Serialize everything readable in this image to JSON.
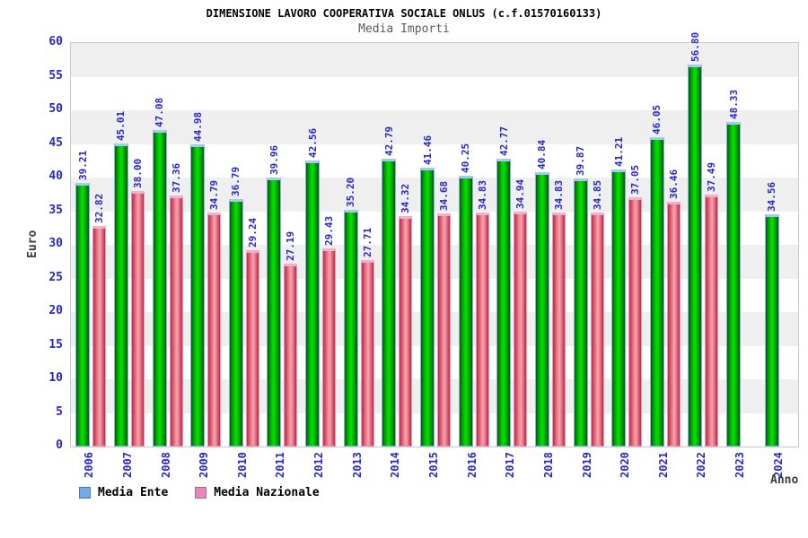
{
  "title": "DIMENSIONE LAVORO COOPERATIVA SOCIALE ONLUS (c.f.01570160133)",
  "subtitle": "Media Importi",
  "y_axis_label": "Euro",
  "x_axis_label": "Anno",
  "legend": [
    {
      "label": "Media Ente",
      "swatch_color": "#73aae8"
    },
    {
      "label": "Media Nazionale",
      "swatch_color": "#ea85b8"
    }
  ],
  "chart_data": {
    "type": "bar",
    "title": "DIMENSIONE LAVORO COOPERATIVA SOCIALE ONLUS (c.f.01570160133)",
    "subtitle": "Media Importi",
    "xlabel": "Anno",
    "ylabel": "Euro",
    "ylim": [
      0,
      60
    ],
    "ytick_step": 5,
    "grid": "horizontal-bands-alternating",
    "legend_position": "bottom-left",
    "categories": [
      "2006",
      "2007",
      "2008",
      "2009",
      "2010",
      "2011",
      "2012",
      "2013",
      "2014",
      "2015",
      "2016",
      "2017",
      "2018",
      "2019",
      "2020",
      "2021",
      "2022",
      "2023",
      "2024"
    ],
    "series": [
      {
        "name": "Media Ente",
        "bar_color": "#00c800",
        "values": [
          39.21,
          45.01,
          47.08,
          44.98,
          36.79,
          39.96,
          42.56,
          35.2,
          42.79,
          41.46,
          40.25,
          42.77,
          40.84,
          39.87,
          41.21,
          46.05,
          56.8,
          48.33,
          34.56
        ]
      },
      {
        "name": "Media Nazionale",
        "bar_color": "#ef93a2",
        "values": [
          32.82,
          38.0,
          37.36,
          34.79,
          29.24,
          27.19,
          29.43,
          27.71,
          34.32,
          34.68,
          34.83,
          34.94,
          34.83,
          34.85,
          37.05,
          36.46,
          37.49,
          null,
          null
        ]
      }
    ],
    "value_label_color": "#2626cd",
    "tick_label_color": "#2626cd"
  }
}
